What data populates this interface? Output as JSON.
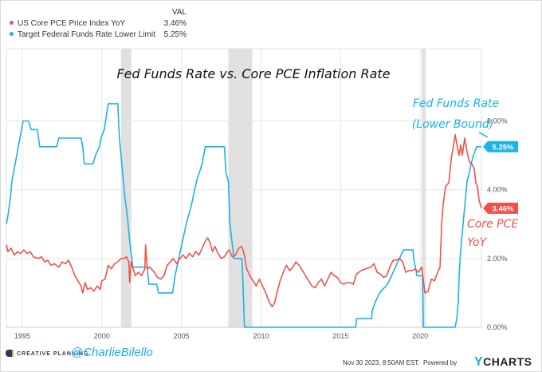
{
  "legend": {
    "header": "VAL",
    "items": [
      {
        "label": "US Core PCE Price Index YoY",
        "value": "3.46%",
        "color": "#f0524a"
      },
      {
        "label": "Target Federal Funds Rate Lower Limit",
        "value": "5.25%",
        "color": "#1ab4e8"
      }
    ]
  },
  "footer": {
    "brand": "CREATIVE PLANNING",
    "handle": "@CharlieBilello",
    "timestamp": "Nov 30 2023, 8:50AM EST.",
    "powered_by": "Powered by",
    "ycharts_y": "Y",
    "ycharts_rest": "CHARTS"
  },
  "chart_data": {
    "type": "line",
    "title": "Fed Funds Rate vs. Core PCE Inflation Rate",
    "xlim": [
      1994.0,
      2023.85
    ],
    "ylim": [
      0,
      8.1
    ],
    "x_ticks": [
      1995,
      2000,
      2005,
      2010,
      2015,
      2020
    ],
    "x_tick_labels": [
      "1995",
      "2000",
      "2005",
      "2010",
      "2015",
      "2020"
    ],
    "y_ticks": [
      0,
      2,
      4,
      6
    ],
    "y_tick_labels": [
      "0.00%",
      "2.00%",
      "4.00%",
      "6.00%"
    ],
    "grid": true,
    "recessions": [
      [
        2001.2,
        2001.85
      ],
      [
        2007.95,
        2009.45
      ],
      [
        2020.1,
        2020.35
      ]
    ],
    "annotations": [
      {
        "text_lines": [
          "Fed Funds Rate",
          "(Lower Bound)"
        ],
        "color": "#1ab4e8"
      },
      {
        "text_lines": [
          "Core PCE",
          "YoY"
        ],
        "color": "#f0524a"
      }
    ],
    "series": [
      {
        "name": "Target Federal Funds Rate Lower Limit",
        "color": "#1ab4e8",
        "last_label": "5.25%",
        "points": [
          [
            1994.0,
            3.0
          ],
          [
            1994.1,
            3.25
          ],
          [
            1994.25,
            3.75
          ],
          [
            1994.35,
            4.25
          ],
          [
            1994.55,
            4.75
          ],
          [
            1994.85,
            5.5
          ],
          [
            1995.05,
            6.0
          ],
          [
            1995.4,
            6.0
          ],
          [
            1995.55,
            5.75
          ],
          [
            1995.95,
            5.75
          ],
          [
            1996.1,
            5.25
          ],
          [
            1997.15,
            5.25
          ],
          [
            1997.3,
            5.5
          ],
          [
            1998.7,
            5.5
          ],
          [
            1998.8,
            5.25
          ],
          [
            1998.9,
            4.75
          ],
          [
            1999.45,
            4.75
          ],
          [
            1999.6,
            5.0
          ],
          [
            1999.85,
            5.25
          ],
          [
            1999.95,
            5.5
          ],
          [
            2000.15,
            5.75
          ],
          [
            2000.4,
            6.5
          ],
          [
            2001.0,
            6.5
          ],
          [
            2001.1,
            5.5
          ],
          [
            2001.3,
            4.5
          ],
          [
            2001.45,
            3.75
          ],
          [
            2001.6,
            3.25
          ],
          [
            2001.75,
            2.5
          ],
          [
            2001.95,
            1.75
          ],
          [
            2002.85,
            1.75
          ],
          [
            2002.95,
            1.25
          ],
          [
            2003.45,
            1.25
          ],
          [
            2003.55,
            1.0
          ],
          [
            2004.45,
            1.0
          ],
          [
            2004.6,
            1.5
          ],
          [
            2004.95,
            2.25
          ],
          [
            2005.3,
            3.0
          ],
          [
            2005.6,
            3.5
          ],
          [
            2005.95,
            4.25
          ],
          [
            2006.3,
            4.75
          ],
          [
            2006.5,
            5.25
          ],
          [
            2007.7,
            5.25
          ],
          [
            2007.8,
            4.5
          ],
          [
            2007.95,
            4.25
          ],
          [
            2008.05,
            3.0
          ],
          [
            2008.3,
            2.0
          ],
          [
            2008.8,
            2.0
          ],
          [
            2008.85,
            1.5
          ],
          [
            2008.96,
            0.0
          ],
          [
            2015.95,
            0.0
          ],
          [
            2016.0,
            0.25
          ],
          [
            2016.95,
            0.25
          ],
          [
            2017.0,
            0.5
          ],
          [
            2017.2,
            0.75
          ],
          [
            2017.45,
            1.0
          ],
          [
            2017.95,
            1.25
          ],
          [
            2018.2,
            1.5
          ],
          [
            2018.45,
            1.75
          ],
          [
            2018.7,
            2.0
          ],
          [
            2018.95,
            2.25
          ],
          [
            2019.55,
            2.25
          ],
          [
            2019.6,
            2.0
          ],
          [
            2019.7,
            1.75
          ],
          [
            2019.8,
            1.5
          ],
          [
            2020.15,
            1.5
          ],
          [
            2020.2,
            0.0
          ],
          [
            2022.2,
            0.0
          ],
          [
            2022.3,
            0.25
          ],
          [
            2022.4,
            0.75
          ],
          [
            2022.45,
            1.5
          ],
          [
            2022.55,
            2.25
          ],
          [
            2022.7,
            3.0
          ],
          [
            2022.85,
            3.75
          ],
          [
            2022.95,
            4.25
          ],
          [
            2023.1,
            4.5
          ],
          [
            2023.2,
            4.75
          ],
          [
            2023.35,
            5.0
          ],
          [
            2023.55,
            5.25
          ],
          [
            2023.85,
            5.25
          ]
        ]
      },
      {
        "name": "US Core PCE Price Index YoY",
        "color": "#f0524a",
        "last_label": "3.46%",
        "points": [
          [
            1994.0,
            2.4
          ],
          [
            1994.1,
            2.2
          ],
          [
            1994.3,
            2.3
          ],
          [
            1994.5,
            2.1
          ],
          [
            1994.7,
            2.2
          ],
          [
            1994.9,
            2.15
          ],
          [
            1995.1,
            2.25
          ],
          [
            1995.3,
            2.15
          ],
          [
            1995.5,
            2.2
          ],
          [
            1995.7,
            2.05
          ],
          [
            1996.0,
            2.0
          ],
          [
            1996.2,
            2.05
          ],
          [
            1996.4,
            1.9
          ],
          [
            1996.6,
            1.95
          ],
          [
            1996.8,
            1.8
          ],
          [
            1997.0,
            1.85
          ],
          [
            1997.3,
            1.75
          ],
          [
            1997.5,
            1.9
          ],
          [
            1997.7,
            1.85
          ],
          [
            1997.9,
            1.95
          ],
          [
            1998.1,
            1.75
          ],
          [
            1998.3,
            1.5
          ],
          [
            1998.5,
            1.35
          ],
          [
            1998.7,
            1.2
          ],
          [
            1998.8,
            1.0
          ],
          [
            1998.95,
            1.3
          ],
          [
            1999.1,
            1.1
          ],
          [
            1999.3,
            1.15
          ],
          [
            1999.5,
            1.05
          ],
          [
            1999.7,
            1.2
          ],
          [
            1999.9,
            1.1
          ],
          [
            2000.0,
            1.35
          ],
          [
            2000.2,
            1.4
          ],
          [
            2000.4,
            1.8
          ],
          [
            2000.6,
            1.7
          ],
          [
            2000.8,
            1.85
          ],
          [
            2001.0,
            1.9
          ],
          [
            2001.2,
            2.0
          ],
          [
            2001.4,
            2.0
          ],
          [
            2001.55,
            2.05
          ],
          [
            2001.7,
            1.9
          ],
          [
            2001.75,
            1.3
          ],
          [
            2001.85,
            1.9
          ],
          [
            2002.1,
            1.5
          ],
          [
            2002.3,
            1.6
          ],
          [
            2002.5,
            1.5
          ],
          [
            2002.7,
            1.7
          ],
          [
            2002.75,
            2.4
          ],
          [
            2002.85,
            1.7
          ],
          [
            2003.0,
            1.75
          ],
          [
            2003.3,
            1.6
          ],
          [
            2003.5,
            1.45
          ],
          [
            2003.7,
            1.4
          ],
          [
            2003.9,
            1.5
          ],
          [
            2004.1,
            1.8
          ],
          [
            2004.3,
            1.9
          ],
          [
            2004.5,
            2.0
          ],
          [
            2004.7,
            1.85
          ],
          [
            2004.9,
            2.0
          ],
          [
            2005.1,
            2.1
          ],
          [
            2005.3,
            2.0
          ],
          [
            2005.5,
            2.15
          ],
          [
            2005.7,
            2.05
          ],
          [
            2005.9,
            2.2
          ],
          [
            2006.1,
            2.1
          ],
          [
            2006.3,
            2.3
          ],
          [
            2006.5,
            2.5
          ],
          [
            2006.65,
            2.6
          ],
          [
            2006.8,
            2.45
          ],
          [
            2006.95,
            2.2
          ],
          [
            2007.1,
            2.35
          ],
          [
            2007.3,
            2.15
          ],
          [
            2007.5,
            2.0
          ],
          [
            2007.7,
            2.05
          ],
          [
            2007.9,
            2.2
          ],
          [
            2008.0,
            2.25
          ],
          [
            2008.2,
            2.05
          ],
          [
            2008.4,
            2.1
          ],
          [
            2008.6,
            2.3
          ],
          [
            2008.8,
            2.35
          ],
          [
            2008.95,
            2.1
          ],
          [
            2009.1,
            1.7
          ],
          [
            2009.3,
            1.5
          ],
          [
            2009.5,
            1.35
          ],
          [
            2009.7,
            1.2
          ],
          [
            2009.9,
            1.4
          ],
          [
            2010.1,
            1.2
          ],
          [
            2010.3,
            1.0
          ],
          [
            2010.5,
            0.75
          ],
          [
            2010.7,
            0.6
          ],
          [
            2010.85,
            0.7
          ],
          [
            2011.0,
            1.0
          ],
          [
            2011.2,
            1.35
          ],
          [
            2011.4,
            1.6
          ],
          [
            2011.6,
            1.8
          ],
          [
            2011.8,
            1.65
          ],
          [
            2012.0,
            1.75
          ],
          [
            2012.2,
            1.9
          ],
          [
            2012.4,
            1.8
          ],
          [
            2012.6,
            1.65
          ],
          [
            2012.8,
            1.5
          ],
          [
            2013.0,
            1.35
          ],
          [
            2013.2,
            1.2
          ],
          [
            2013.4,
            1.15
          ],
          [
            2013.6,
            1.3
          ],
          [
            2013.8,
            1.4
          ],
          [
            2014.0,
            1.2
          ],
          [
            2014.2,
            1.4
          ],
          [
            2014.4,
            1.6
          ],
          [
            2014.6,
            1.5
          ],
          [
            2014.8,
            1.45
          ],
          [
            2015.0,
            1.3
          ],
          [
            2015.2,
            1.25
          ],
          [
            2015.4,
            1.3
          ],
          [
            2015.6,
            1.3
          ],
          [
            2015.8,
            1.25
          ],
          [
            2016.0,
            1.55
          ],
          [
            2016.3,
            1.65
          ],
          [
            2016.6,
            1.7
          ],
          [
            2016.9,
            1.75
          ],
          [
            2017.1,
            1.85
          ],
          [
            2017.3,
            1.6
          ],
          [
            2017.5,
            1.55
          ],
          [
            2017.7,
            1.45
          ],
          [
            2017.9,
            1.5
          ],
          [
            2018.1,
            1.75
          ],
          [
            2018.3,
            1.95
          ],
          [
            2018.5,
            1.95
          ],
          [
            2018.7,
            2.0
          ],
          [
            2018.9,
            1.9
          ],
          [
            2019.1,
            1.6
          ],
          [
            2019.3,
            1.65
          ],
          [
            2019.5,
            1.65
          ],
          [
            2019.7,
            1.7
          ],
          [
            2019.9,
            1.6
          ],
          [
            2020.1,
            1.75
          ],
          [
            2020.3,
            1.0
          ],
          [
            2020.5,
            1.05
          ],
          [
            2020.7,
            1.4
          ],
          [
            2020.9,
            1.35
          ],
          [
            2021.1,
            1.6
          ],
          [
            2021.25,
            1.75
          ],
          [
            2021.35,
            3.0
          ],
          [
            2021.45,
            3.6
          ],
          [
            2021.6,
            4.1
          ],
          [
            2021.8,
            4.2
          ],
          [
            2021.95,
            4.9
          ],
          [
            2022.1,
            5.3
          ],
          [
            2022.2,
            5.6
          ],
          [
            2022.35,
            5.2
          ],
          [
            2022.45,
            5.0
          ],
          [
            2022.55,
            5.3
          ],
          [
            2022.65,
            5.0
          ],
          [
            2022.8,
            5.5
          ],
          [
            2022.95,
            5.1
          ],
          [
            2023.1,
            4.8
          ],
          [
            2023.25,
            4.75
          ],
          [
            2023.4,
            4.6
          ],
          [
            2023.5,
            4.2
          ],
          [
            2023.6,
            4.1
          ],
          [
            2023.7,
            3.7
          ],
          [
            2023.85,
            3.46
          ]
        ]
      }
    ]
  }
}
